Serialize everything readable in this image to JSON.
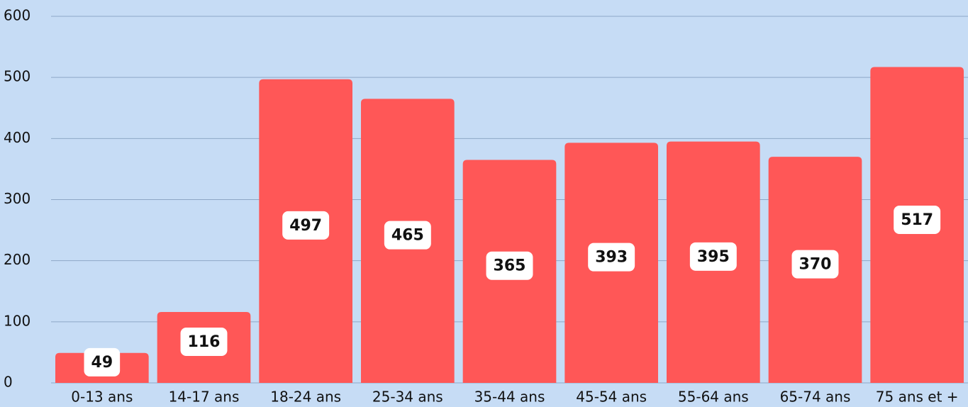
{
  "chart_data": {
    "type": "bar",
    "categories": [
      "0-13 ans",
      "14-17 ans",
      "18-24 ans",
      "25-34 ans",
      "35-44 ans",
      "45-54 ans",
      "55-64 ans",
      "65-74 ans",
      "75 ans et +"
    ],
    "values": [
      49,
      116,
      497,
      465,
      365,
      393,
      395,
      370,
      517
    ],
    "color": "#ff5757",
    "ylim": [
      0,
      600
    ],
    "yticks": [
      0,
      100,
      200,
      300,
      400,
      500,
      600
    ],
    "grid": true
  }
}
